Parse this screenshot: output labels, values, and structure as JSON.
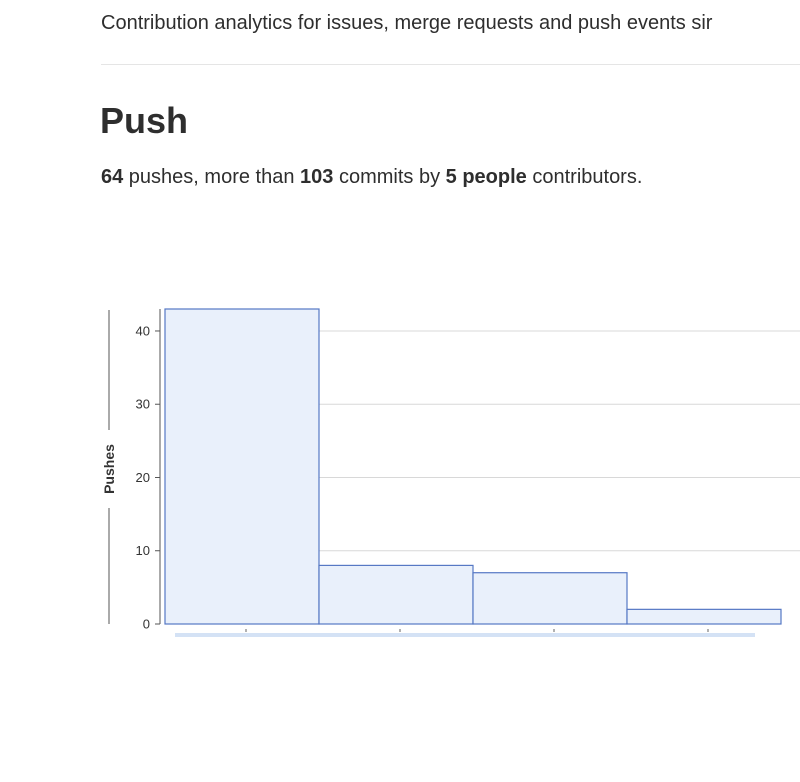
{
  "header": {
    "intro": "Contribution analytics for issues, merge requests and push events sir"
  },
  "push": {
    "title": "Push",
    "summary": {
      "pushes_count": "64",
      "pushes_text": " pushes, more than ",
      "commits_count": "103",
      "commits_text": " commits by ",
      "people_count": "5 people",
      "end_text": " contributors."
    }
  },
  "chart_data": {
    "type": "bar",
    "title": "",
    "xlabel": "",
    "ylabel": "Pushes",
    "categories": [
      "",
      "",
      "",
      ""
    ],
    "values": [
      43,
      8,
      7,
      2
    ],
    "ylim": [
      0,
      43
    ],
    "yticks": [
      0,
      10,
      20,
      30,
      40
    ],
    "grid": true,
    "colors": {
      "bar_fill": "#e9f0fb",
      "bar_stroke": "#5577c4",
      "grid": "#d8d8d8",
      "axis": "#555555"
    }
  }
}
